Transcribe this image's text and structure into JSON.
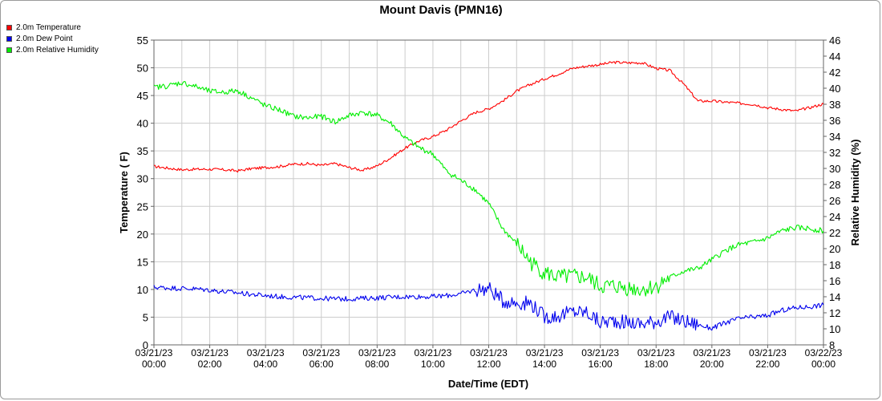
{
  "chart_data": {
    "type": "line",
    "title": "Mount Davis (PMN16)",
    "xlabel": "Date/Time (EDT)",
    "ylabel_left": "Temperature ( F)",
    "ylabel_right": "Relative Humidity (%)",
    "ylim_left": [
      0,
      55
    ],
    "ylim_right": [
      8,
      46
    ],
    "xlim_hours": [
      0,
      24
    ],
    "left_ticks": [
      "0",
      "5",
      "10",
      "15",
      "20",
      "25",
      "30",
      "35",
      "40",
      "45",
      "50",
      "55"
    ],
    "right_ticks": [
      "8",
      "10",
      "12",
      "14",
      "16",
      "18",
      "20",
      "22",
      "24",
      "26",
      "28",
      "30",
      "32",
      "34",
      "36",
      "38",
      "40",
      "42",
      "44",
      "46"
    ],
    "x_ticks": [
      {
        "date": "03/21/23",
        "time": "00:00"
      },
      {
        "date": "03/21/23",
        "time": "02:00"
      },
      {
        "date": "03/21/23",
        "time": "04:00"
      },
      {
        "date": "03/21/23",
        "time": "06:00"
      },
      {
        "date": "03/21/23",
        "time": "08:00"
      },
      {
        "date": "03/21/23",
        "time": "10:00"
      },
      {
        "date": "03/21/23",
        "time": "12:00"
      },
      {
        "date": "03/21/23",
        "time": "14:00"
      },
      {
        "date": "03/21/23",
        "time": "16:00"
      },
      {
        "date": "03/21/23",
        "time": "18:00"
      },
      {
        "date": "03/21/23",
        "time": "20:00"
      },
      {
        "date": "03/21/23",
        "time": "22:00"
      },
      {
        "date": "03/22/23",
        "time": "00:00"
      }
    ],
    "grid": true,
    "legend_position": "top-left",
    "series": [
      {
        "name": "2.0m Temperature",
        "color": "#ff0000",
        "axis": "left",
        "x_hours": [
          0,
          0.5,
          1,
          1.5,
          2,
          2.5,
          3,
          3.5,
          4,
          4.5,
          5,
          5.5,
          6,
          6.5,
          7,
          7.5,
          8,
          8.5,
          9,
          9.5,
          10,
          10.5,
          11,
          11.5,
          12,
          12.5,
          13,
          13.5,
          14,
          14.5,
          15,
          15.5,
          16,
          16.5,
          17,
          17.5,
          18,
          18.5,
          19,
          19.5,
          20,
          20.5,
          21,
          21.5,
          22,
          22.5,
          23,
          23.5,
          24
        ],
        "values": [
          32.2,
          31.9,
          31.6,
          31.7,
          31.7,
          31.6,
          31.4,
          31.8,
          32.0,
          32.2,
          32.6,
          32.7,
          32.4,
          32.7,
          32.0,
          31.5,
          32.3,
          33.8,
          35.5,
          36.8,
          37.6,
          38.8,
          40.4,
          41.9,
          42.6,
          44.0,
          45.8,
          47.0,
          48.0,
          48.9,
          49.9,
          50.3,
          50.6,
          51.0,
          50.9,
          50.9,
          49.9,
          49.5,
          47.0,
          44.0,
          44.0,
          43.8,
          43.6,
          43.4,
          42.8,
          42.5,
          42.2,
          42.8,
          43.5
        ]
      },
      {
        "name": "2.0m Dew Point",
        "color": "#0000ee",
        "axis": "left",
        "x_hours": [
          0,
          0.5,
          1,
          1.5,
          2,
          2.5,
          3,
          3.5,
          4,
          4.5,
          5,
          5.5,
          6,
          6.5,
          7,
          7.5,
          8,
          8.5,
          9,
          9.5,
          10,
          10.5,
          11,
          11.5,
          12,
          12.5,
          13,
          13.5,
          14,
          14.5,
          15,
          15.5,
          16,
          16.5,
          17,
          17.5,
          18,
          18.5,
          19,
          19.5,
          20,
          20.5,
          21,
          21.5,
          22,
          22.5,
          23,
          23.5,
          24
        ],
        "values": [
          10.4,
          10.3,
          10.2,
          10.1,
          9.9,
          9.6,
          9.4,
          9.1,
          8.9,
          8.7,
          8.6,
          8.5,
          8.4,
          8.3,
          8.3,
          8.4,
          8.5,
          8.6,
          8.7,
          8.7,
          8.7,
          8.9,
          9.2,
          9.9,
          10.2,
          8.0,
          7.6,
          7.6,
          5.0,
          5.2,
          6.0,
          5.9,
          4.0,
          4.4,
          4.0,
          3.8,
          4.3,
          5.0,
          4.3,
          3.6,
          3.0,
          4.0,
          4.8,
          5.0,
          5.3,
          6.2,
          6.7,
          6.9,
          7.2
        ]
      },
      {
        "name": "2.0m Relative Humidity",
        "color": "#00ee00",
        "axis": "right",
        "x_hours": [
          0,
          0.5,
          1,
          1.5,
          2,
          2.5,
          3,
          3.5,
          4,
          4.5,
          5,
          5.5,
          6,
          6.5,
          7,
          7.5,
          8,
          8.5,
          9,
          9.5,
          10,
          10.5,
          11,
          11.5,
          12,
          12.5,
          13,
          13.5,
          14,
          14.5,
          15,
          15.5,
          16,
          16.5,
          17,
          17.5,
          18,
          18.5,
          19,
          19.5,
          20,
          20.5,
          21,
          21.5,
          22,
          22.5,
          23,
          23.5,
          24
        ],
        "values": [
          40.1,
          40.3,
          40.7,
          40.2,
          39.6,
          39.5,
          39.7,
          38.8,
          37.8,
          37.3,
          36.5,
          36.3,
          36.5,
          35.8,
          36.6,
          37.0,
          36.6,
          35.6,
          33.8,
          32.6,
          31.8,
          29.6,
          28.5,
          27.4,
          25.6,
          22.5,
          20.6,
          18.3,
          17.0,
          16.4,
          16.5,
          16.4,
          15.3,
          15.3,
          15.1,
          14.9,
          15.3,
          16.4,
          17.2,
          17.5,
          18.6,
          19.8,
          20.5,
          20.8,
          21.3,
          22.2,
          22.6,
          22.5,
          22.2
        ]
      }
    ]
  }
}
